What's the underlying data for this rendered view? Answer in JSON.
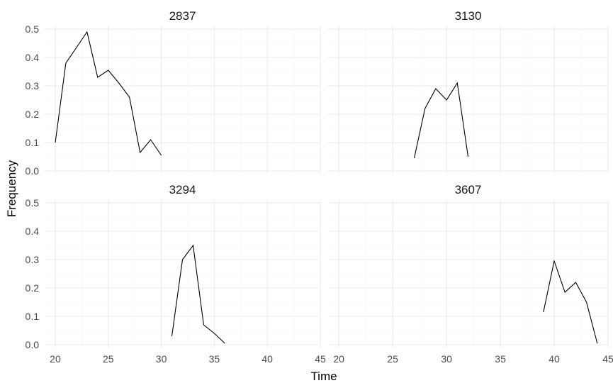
{
  "chart_data": {
    "type": "line",
    "xlabel": "Time",
    "ylabel": "Frequency",
    "xlim": [
      19,
      45
    ],
    "ylim": [
      -0.01,
      0.51
    ],
    "xticks": [
      20,
      25,
      30,
      35,
      40,
      45
    ],
    "yticks": [
      0.0,
      0.1,
      0.2,
      0.3,
      0.4,
      0.5
    ],
    "xtick_labels": [
      "20",
      "25",
      "30",
      "35",
      "40",
      "45"
    ],
    "ytick_labels": [
      "0.0",
      "0.1",
      "0.2",
      "0.3",
      "0.4",
      "0.5"
    ],
    "grid": true,
    "facets": [
      {
        "title": "2837",
        "x": [
          20,
          21,
          22,
          23,
          24,
          25,
          26,
          27,
          28,
          29,
          30
        ],
        "y": [
          0.1,
          0.38,
          0.435,
          0.49,
          0.33,
          0.355,
          0.31,
          0.26,
          0.065,
          0.11,
          0.055
        ]
      },
      {
        "title": "3130",
        "x": [
          27,
          28,
          29,
          30,
          31,
          32
        ],
        "y": [
          0.045,
          0.22,
          0.29,
          0.25,
          0.31,
          0.05
        ]
      },
      {
        "title": "3294",
        "x": [
          31,
          32,
          33,
          34,
          35,
          36
        ],
        "y": [
          0.03,
          0.3,
          0.35,
          0.07,
          0.04,
          0.005
        ]
      },
      {
        "title": "3607",
        "x": [
          39,
          40,
          41,
          42,
          43,
          44
        ],
        "y": [
          0.115,
          0.295,
          0.185,
          0.22,
          0.15,
          0.005
        ]
      }
    ]
  }
}
